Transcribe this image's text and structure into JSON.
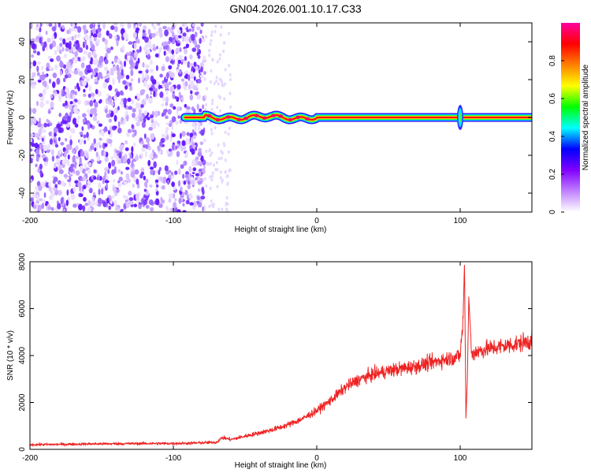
{
  "title": "GN04.2026.001.10.17.C33",
  "chart_data": [
    {
      "type": "heatmap",
      "xlabel": "Height of straight line (km)",
      "ylabel": "Frequency (Hz)",
      "xlim": [
        -200,
        150
      ],
      "ylim": [
        -50,
        50
      ],
      "x_ticks": [
        -200,
        -100,
        0,
        100
      ],
      "y_ticks": [
        -40,
        -20,
        0,
        20,
        40
      ],
      "colorbar": {
        "label": "Normalized spectral amplitude",
        "range": [
          0,
          1
        ],
        "ticks": [
          0.0,
          0.2,
          0.4,
          0.6,
          0.8
        ],
        "colors": [
          "#ffffff",
          "#c080ff",
          "#8000ff",
          "#0000ff",
          "#00ffff",
          "#00ff00",
          "#ffff00",
          "#ff8000",
          "#ff0000",
          "#ff00a0"
        ]
      },
      "features": {
        "noise_region_x": [
          -200,
          -78
        ],
        "noise_fade_x": [
          -78,
          -60
        ],
        "signal_line_frequency": 0,
        "signal_line_start_x": -92,
        "wobble_x": [
          -78,
          0
        ],
        "spike_x": 100
      }
    },
    {
      "type": "line",
      "xlabel": "Height of straight line (km)",
      "ylabel": "SNR (10 * v/v)",
      "xlim": [
        -200,
        150
      ],
      "ylim": [
        0,
        8000
      ],
      "x_ticks": [
        -200,
        -100,
        0,
        100
      ],
      "y_ticks": [
        0,
        2000,
        4000,
        6000,
        8000
      ],
      "color": "#ee2222",
      "x": [
        -200,
        -180,
        -160,
        -140,
        -120,
        -100,
        -90,
        -80,
        -70,
        -66,
        -60,
        -50,
        -40,
        -30,
        -20,
        -10,
        0,
        10,
        20,
        30,
        40,
        50,
        60,
        70,
        80,
        90,
        95,
        100,
        102,
        103,
        104,
        105,
        106,
        108,
        110,
        120,
        130,
        140,
        150
      ],
      "y": [
        200,
        210,
        230,
        240,
        250,
        250,
        260,
        280,
        300,
        500,
        420,
        560,
        700,
        850,
        1050,
        1300,
        1650,
        2100,
        2650,
        3000,
        3200,
        3350,
        3450,
        3550,
        3700,
        3850,
        3900,
        4000,
        5500,
        8000,
        1300,
        3000,
        6500,
        4000,
        4150,
        4300,
        4400,
        4500,
        4650
      ],
      "spike_x": [
        103,
        104,
        105,
        106
      ]
    }
  ]
}
